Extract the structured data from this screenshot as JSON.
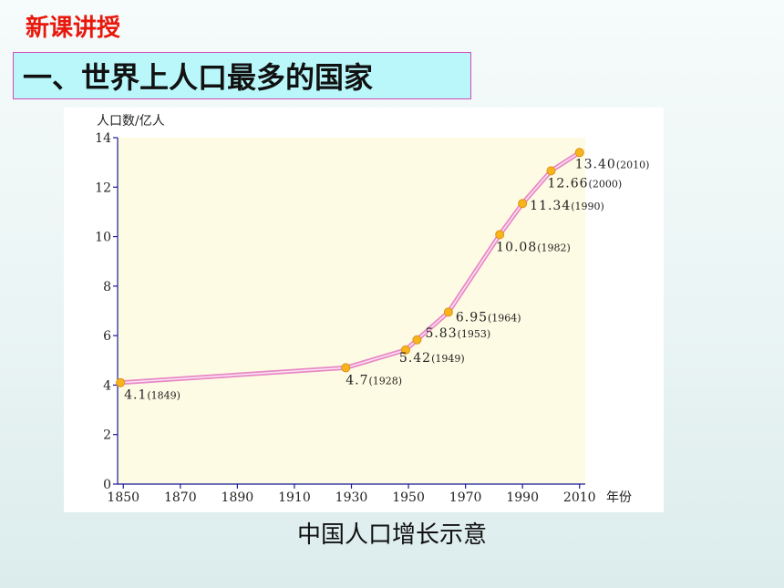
{
  "header": {
    "section_label": "新课讲授",
    "title": "一、世界上人口最多的国家"
  },
  "caption": "中国人口增长示意",
  "colors": {
    "section_label": "#e8180c",
    "title_bg": "#b9f7fb",
    "title_border": "#d24bb8",
    "plot_bg": "#fdfbe3",
    "line": "#e889c6",
    "marker": "#f7b51a"
  },
  "chart_data": {
    "type": "line",
    "ylabel": "人口数/亿人",
    "xlabel": "年份",
    "xlim": [
      1848,
      2012
    ],
    "ylim": [
      0,
      14
    ],
    "x_ticks": [
      1850,
      1870,
      1890,
      1910,
      1930,
      1950,
      1970,
      1990,
      2010
    ],
    "y_ticks": [
      0,
      2,
      4,
      6,
      8,
      10,
      12,
      14
    ],
    "grid": false,
    "series": [
      {
        "points": [
          {
            "x": 1849,
            "y": 4.1,
            "value_label": "4.1",
            "year_label": "(1849)"
          },
          {
            "x": 1928,
            "y": 4.7,
            "value_label": "4.7",
            "year_label": "(1928)"
          },
          {
            "x": 1949,
            "y": 5.42,
            "value_label": "5.42",
            "year_label": "(1949)"
          },
          {
            "x": 1953,
            "y": 5.83,
            "value_label": "5.83",
            "year_label": "(1953)"
          },
          {
            "x": 1964,
            "y": 6.95,
            "value_label": "6.95",
            "year_label": "(1964)"
          },
          {
            "x": 1982,
            "y": 10.08,
            "value_label": "10.08",
            "year_label": "(1982)"
          },
          {
            "x": 1990,
            "y": 11.34,
            "value_label": "11.34",
            "year_label": "(1990)"
          },
          {
            "x": 2000,
            "y": 12.66,
            "value_label": "12.66",
            "year_label": "(2000)"
          },
          {
            "x": 2010,
            "y": 13.4,
            "value_label": "13.40",
            "year_label": "(2010)"
          }
        ]
      }
    ]
  }
}
